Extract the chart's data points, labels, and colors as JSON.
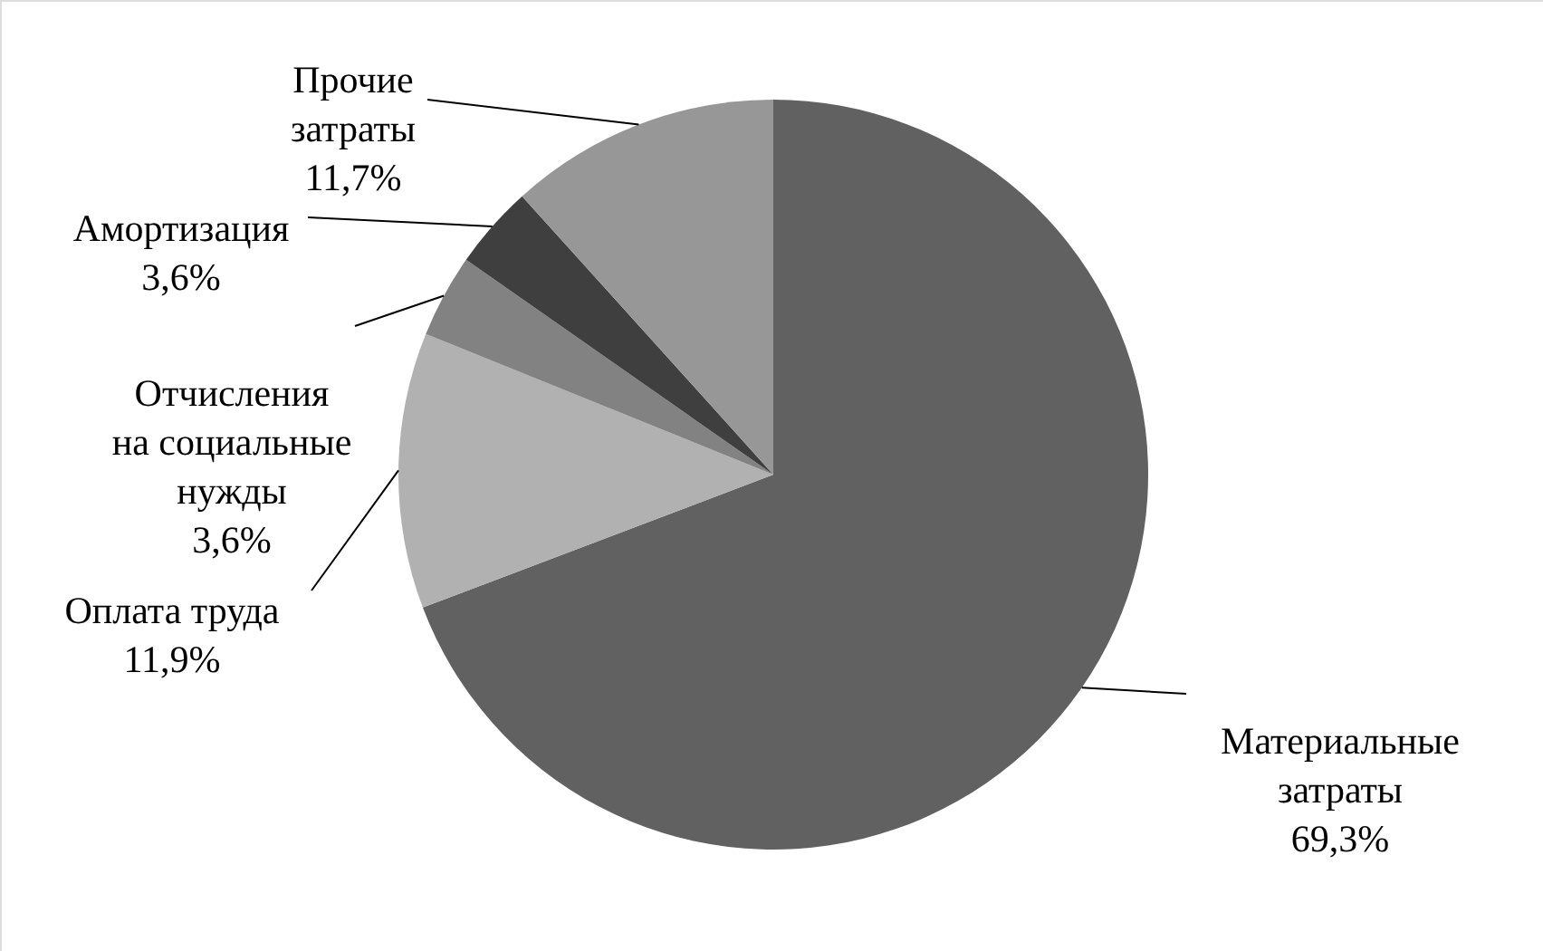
{
  "chart_data": {
    "type": "pie",
    "categories": [
      "Материальные затраты",
      "Оплата труда",
      "Отчисления на социальные нужды",
      "Амортизация",
      "Прочие затраты"
    ],
    "values": [
      69.3,
      11.9,
      3.6,
      3.6,
      11.7
    ],
    "value_labels": [
      "69,3%",
      "11,9%",
      "3,6%",
      "3,6%",
      "11,7%"
    ],
    "colors": [
      "#616161",
      "#b1b1b1",
      "#828282",
      "#3f3f3f",
      "#979797"
    ]
  }
}
